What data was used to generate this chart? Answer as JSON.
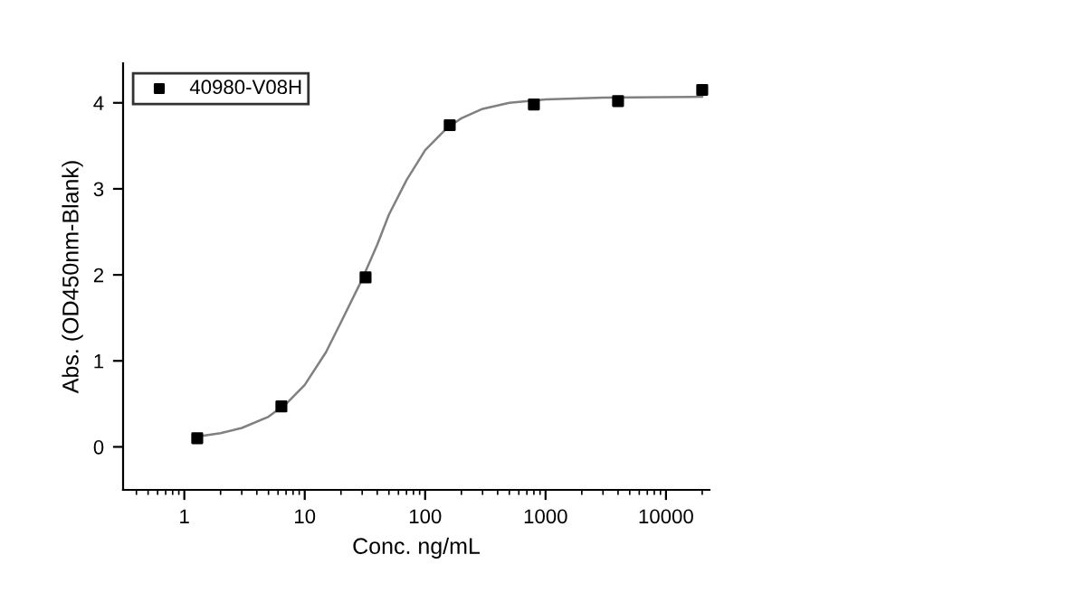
{
  "chart_data": {
    "type": "scatter",
    "xlabel": "Conc. ng/mL",
    "ylabel": "Abs. (OD450nm-Blank)",
    "log": "x",
    "xlim": [
      0.31,
      23000
    ],
    "ylim": [
      -0.5,
      4.46
    ],
    "xticks": [
      1,
      10,
      100,
      1000,
      10000
    ],
    "yticks": [
      0,
      1,
      2,
      3,
      4
    ],
    "grid": false,
    "legend": "top left",
    "series": [
      {
        "name": "40980-V08H",
        "marker": "square",
        "color": "#000000",
        "x": [
          1.28,
          6.4,
          32,
          160,
          800,
          4000,
          20000
        ],
        "values": [
          0.1,
          0.47,
          1.97,
          3.74,
          3.98,
          4.02,
          4.15
        ]
      },
      {
        "type": "line",
        "color": "#808080",
        "line_style": "solid",
        "x": [
          1.28,
          2,
          3,
          5,
          7,
          10,
          15,
          20,
          30,
          40,
          50,
          70,
          100,
          150,
          200,
          300,
          500,
          1000,
          3000,
          20000
        ],
        "values": [
          0.12,
          0.16,
          0.22,
          0.35,
          0.5,
          0.72,
          1.1,
          1.45,
          1.95,
          2.35,
          2.7,
          3.1,
          3.45,
          3.7,
          3.82,
          3.93,
          4.0,
          4.04,
          4.06,
          4.07
        ]
      }
    ]
  }
}
